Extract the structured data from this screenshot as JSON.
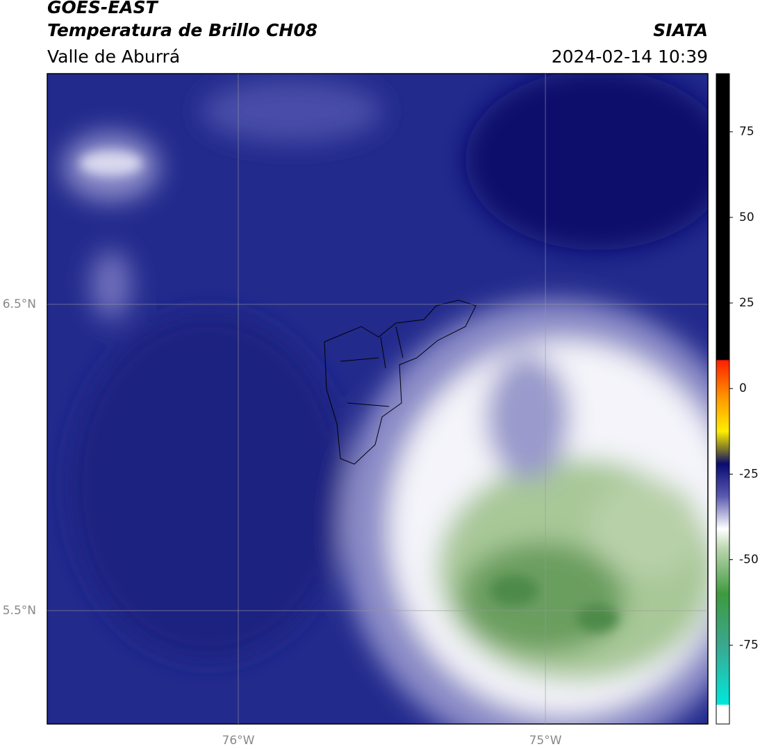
{
  "header": {
    "title": "GOES-EAST",
    "subtitle": "Temperatura de Brillo CH08",
    "region": "Valle de Aburrá",
    "source": "SIATA",
    "datetime": "2024-02-14 10:39"
  },
  "map": {
    "xlim": [
      -76.622,
      -74.471
    ],
    "ylim": [
      5.13,
      7.253
    ],
    "xticks": [
      {
        "value": -76,
        "label": "76°W"
      },
      {
        "value": -75,
        "label": "75°W"
      }
    ],
    "yticks": [
      {
        "value": 6.5,
        "label": "6.5°N"
      },
      {
        "value": 5.5,
        "label": "5.5°N"
      }
    ]
  },
  "colorbar": {
    "lim": [
      -98,
      92
    ],
    "ticks": [
      75,
      50,
      25,
      0,
      -25,
      -50,
      -75
    ]
  }
}
